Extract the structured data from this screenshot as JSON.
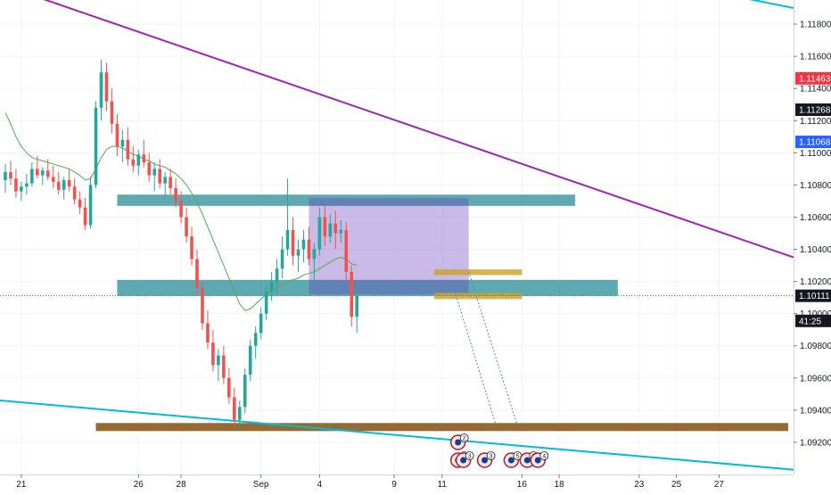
{
  "chart_data": {
    "type": "candlestick",
    "pair_hint": "",
    "y_axis": {
      "min": 1.09,
      "max": 1.1195,
      "tick_labels": [
        "1.11800",
        "1.11600",
        "1.11400",
        "1.11200",
        "1.11000",
        "1.10800",
        "1.10600",
        "1.10400",
        "1.10200",
        "1.10000",
        "1.09800",
        "1.09600",
        "1.09400",
        "1.09200"
      ],
      "ticks": [
        1.118,
        1.116,
        1.114,
        1.112,
        1.11,
        1.108,
        1.106,
        1.104,
        1.102,
        1.1,
        1.098,
        1.096,
        1.094,
        1.092
      ]
    },
    "x_axis": {
      "tick_labels": [
        "21",
        "26",
        "28",
        "Sep",
        "4",
        "9",
        "11",
        "16",
        "18",
        "23",
        "25",
        "27"
      ],
      "ticks": [
        3,
        25,
        33,
        48,
        59,
        73,
        82,
        97,
        104,
        119,
        126,
        134
      ]
    },
    "price_tags": [
      {
        "label": "1.11463",
        "price": 1.11463,
        "bg": "#f23645",
        "fg": "#ffffff"
      },
      {
        "label": "1.11268",
        "price": 1.11268,
        "bg": "#131722",
        "fg": "#ffffff"
      },
      {
        "label": "1.11068",
        "price": 1.11068,
        "bg": "#2962ff",
        "fg": "#ffffff"
      },
      {
        "label": "1.10111",
        "price": 1.10111,
        "bg": "#131722",
        "fg": "#ffffff"
      },
      {
        "label": "41:25",
        "price": 1.09955,
        "bg": "#131722",
        "fg": "#ffffff"
      }
    ],
    "candles": [
      [
        1.1083,
        1.1093,
        1.1075,
        1.1088
      ],
      [
        1.1088,
        1.1095,
        1.108,
        1.1084
      ],
      [
        1.1084,
        1.109,
        1.1072,
        1.1076
      ],
      [
        1.1076,
        1.1082,
        1.107,
        1.1079
      ],
      [
        1.1079,
        1.1087,
        1.1074,
        1.1081
      ],
      [
        1.1081,
        1.1094,
        1.1079,
        1.109
      ],
      [
        1.109,
        1.1098,
        1.1084,
        1.1086
      ],
      [
        1.1086,
        1.1091,
        1.108,
        1.1089
      ],
      [
        1.1089,
        1.1096,
        1.1083,
        1.1085
      ],
      [
        1.1085,
        1.1092,
        1.1078,
        1.1082
      ],
      [
        1.1082,
        1.1088,
        1.1074,
        1.1077
      ],
      [
        1.1077,
        1.1085,
        1.1071,
        1.1083
      ],
      [
        1.1083,
        1.109,
        1.1076,
        1.1079
      ],
      [
        1.1079,
        1.1084,
        1.1068,
        1.1071
      ],
      [
        1.1071,
        1.1076,
        1.1062,
        1.1066
      ],
      [
        1.1066,
        1.1072,
        1.1052,
        1.1055
      ],
      [
        1.1055,
        1.1085,
        1.1053,
        1.108
      ],
      [
        1.108,
        1.1132,
        1.1078,
        1.1128
      ],
      [
        1.1128,
        1.1158,
        1.112,
        1.115
      ],
      [
        1.115,
        1.1156,
        1.1126,
        1.1132
      ],
      [
        1.1132,
        1.114,
        1.1112,
        1.1118
      ],
      [
        1.1118,
        1.1124,
        1.1098,
        1.1104
      ],
      [
        1.1104,
        1.1114,
        1.1094,
        1.1108
      ],
      [
        1.1108,
        1.1116,
        1.1092,
        1.1096
      ],
      [
        1.1096,
        1.1104,
        1.1088,
        1.1092
      ],
      [
        1.1092,
        1.1102,
        1.1086,
        1.1099
      ],
      [
        1.1099,
        1.1108,
        1.1091,
        1.1094
      ],
      [
        1.1094,
        1.11,
        1.1082,
        1.1086
      ],
      [
        1.1086,
        1.1094,
        1.1076,
        1.109
      ],
      [
        1.109,
        1.1096,
        1.1078,
        1.1081
      ],
      [
        1.1081,
        1.1088,
        1.1072,
        1.1085
      ],
      [
        1.1085,
        1.109,
        1.1074,
        1.1078
      ],
      [
        1.1078,
        1.1084,
        1.1066,
        1.107
      ],
      [
        1.107,
        1.1076,
        1.1056,
        1.106
      ],
      [
        1.106,
        1.1066,
        1.1044,
        1.1048
      ],
      [
        1.1048,
        1.1054,
        1.103,
        1.1034
      ],
      [
        1.1034,
        1.104,
        1.1012,
        1.1016
      ],
      [
        1.1016,
        1.102,
        1.099,
        1.0994
      ],
      [
        1.0994,
        1.1002,
        1.0978,
        1.0982
      ],
      [
        1.0982,
        1.099,
        1.0964,
        1.0968
      ],
      [
        1.0968,
        1.0978,
        1.0958,
        1.0974
      ],
      [
        1.0974,
        1.098,
        1.0956,
        1.096
      ],
      [
        1.096,
        1.0966,
        1.0944,
        1.0948
      ],
      [
        1.0948,
        1.0954,
        1.093,
        1.0934
      ],
      [
        1.0934,
        1.0946,
        1.0929,
        1.0942
      ],
      [
        1.0942,
        1.0966,
        1.0938,
        1.0962
      ],
      [
        1.0962,
        1.0984,
        1.0958,
        1.098
      ],
      [
        1.098,
        1.0992,
        1.0972,
        1.0988
      ],
      [
        1.0988,
        1.1004,
        1.0984,
        1.1
      ],
      [
        1.1,
        1.1018,
        1.0996,
        1.1014
      ],
      [
        1.1014,
        1.1026,
        1.1008,
        1.102
      ],
      [
        1.102,
        1.1034,
        1.1012,
        1.1028
      ],
      [
        1.1028,
        1.1048,
        1.1022,
        1.104
      ],
      [
        1.104,
        1.1084,
        1.1036,
        1.1052
      ],
      [
        1.1052,
        1.106,
        1.103,
        1.1036
      ],
      [
        1.1036,
        1.1046,
        1.1026,
        1.104
      ],
      [
        1.104,
        1.1052,
        1.1032,
        1.1046
      ],
      [
        1.1046,
        1.1054,
        1.103,
        1.1034
      ],
      [
        1.1034,
        1.1044,
        1.102,
        1.104
      ],
      [
        1.104,
        1.1066,
        1.1036,
        1.106
      ],
      [
        1.106,
        1.1068,
        1.1042,
        1.1048
      ],
      [
        1.1048,
        1.1062,
        1.1044,
        1.1056
      ],
      [
        1.1056,
        1.1064,
        1.104,
        1.105
      ],
      [
        1.105,
        1.1058,
        1.1044,
        1.1052
      ],
      [
        1.1052,
        1.1057,
        1.102,
        1.1026
      ],
      [
        1.1026,
        1.103,
        1.0992,
        1.0998
      ],
      [
        1.0998,
        1.1016,
        1.0988,
        1.1011
      ]
    ],
    "ma_line": [
      1.1125,
      1.1118,
      1.111,
      1.1104,
      1.11,
      1.1097,
      1.1096,
      1.1095,
      1.1094,
      1.1093,
      1.1092,
      1.1091,
      1.109,
      1.1088,
      1.1086,
      1.1083,
      1.1084,
      1.109,
      1.1097,
      1.1102,
      1.1104,
      1.1104,
      1.1103,
      1.1101,
      1.1099,
      1.1098,
      1.1096,
      1.1095,
      1.1093,
      1.1092,
      1.1091,
      1.1089,
      1.1087,
      1.1084,
      1.108,
      1.1075,
      1.1069,
      1.1062,
      1.1054,
      1.1046,
      1.1038,
      1.103,
      1.1022,
      1.1014,
      1.1006,
      1.1002,
      1.1003,
      1.1006,
      1.1009,
      1.1012,
      1.1014,
      1.1016,
      1.1018,
      1.102,
      1.1021,
      1.1022,
      1.1024,
      1.1025,
      1.1026,
      1.1028,
      1.103,
      1.1032,
      1.1034,
      1.1035,
      1.1034,
      1.1031,
      1.103
    ],
    "colors": {
      "up": "#26a69a",
      "down": "#ef5350",
      "ma": "#4caf50",
      "upper_trendline": "#9c27b0",
      "lower_trendline": "#00bcd4",
      "zone_teal": "#2a8c99",
      "zone_brown": "#8b5a1e",
      "box_purple": "#673ab7",
      "small_box": "#c9a227",
      "projection": "#5b7fc7"
    },
    "events": [
      {
        "label": "2",
        "x": 85,
        "row": 0
      },
      {
        "label": "2",
        "x": 85,
        "row": 1
      },
      {
        "label": "3",
        "x": 86,
        "row": 1
      },
      {
        "label": "3",
        "x": 90,
        "row": 1
      },
      {
        "label": "5",
        "x": 95,
        "row": 1
      },
      {
        "label": "2",
        "x": 98,
        "row": 1
      },
      {
        "label": "4",
        "x": 100,
        "row": 1
      }
    ]
  }
}
